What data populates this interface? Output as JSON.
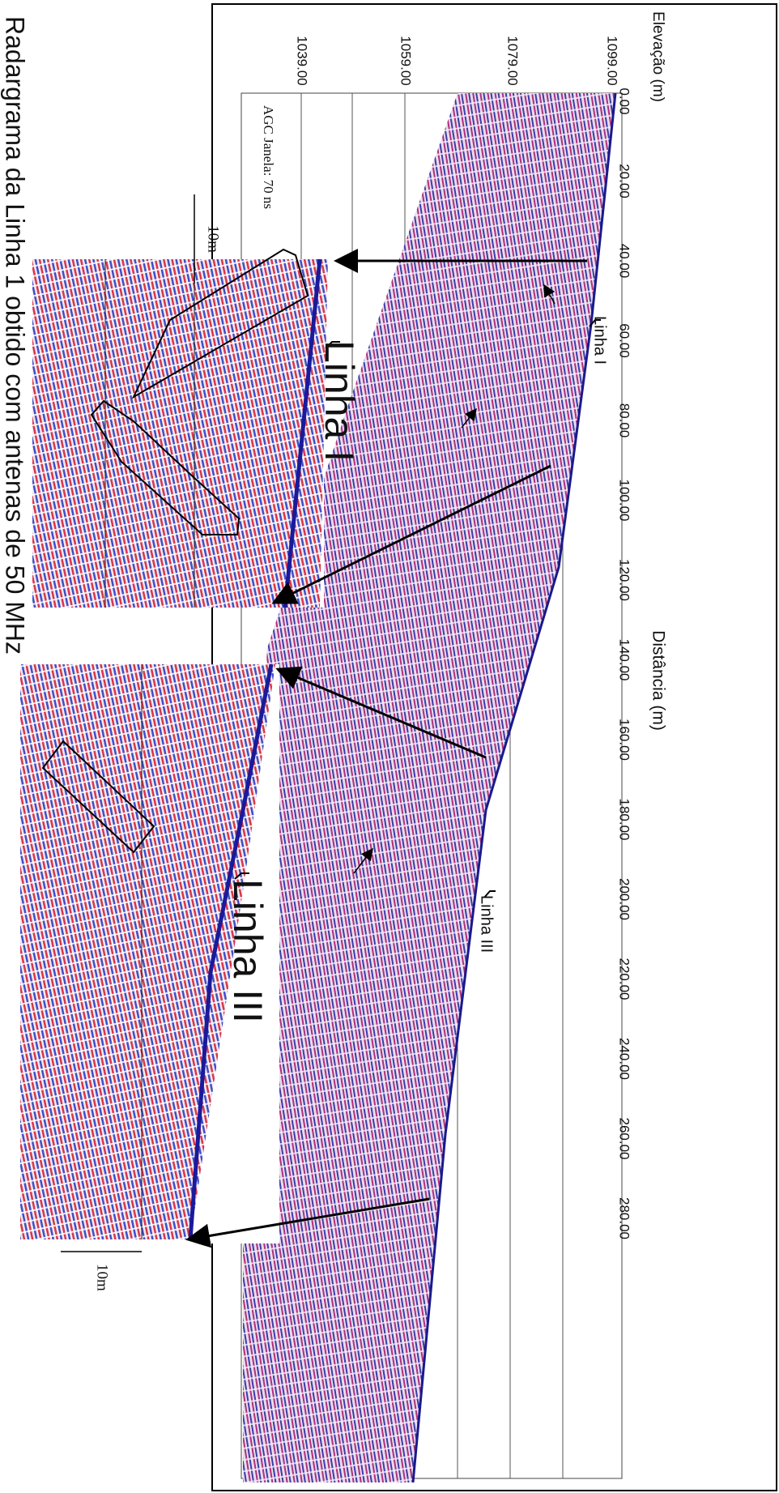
{
  "figure": {
    "y_axis_title": "Elevação (m)",
    "y_ticks": [
      "1099.00",
      "1079.00",
      "1059.00",
      "1039.00"
    ],
    "x_axis_title": "Distância (m)",
    "x_ticks": [
      "0.00",
      "20.00",
      "40.00",
      "60.00",
      "80.00",
      "100.00",
      "120.00",
      "140.00",
      "160.00",
      "180.00",
      "200.00",
      "220.00",
      "240.00",
      "260.00",
      "280.00"
    ],
    "labels": {
      "linha_1_small": "Linha I",
      "linha_3_small": "Linha III",
      "linha_1_large": "Linha I",
      "linha_3_large": "Linha III",
      "agc": "AGC Janela: 70 ns",
      "scale_1": "10m",
      "scale_2": "10m"
    },
    "caption": "Radargrama da Linha 1 obtido com antenas de 50 MHz"
  }
}
